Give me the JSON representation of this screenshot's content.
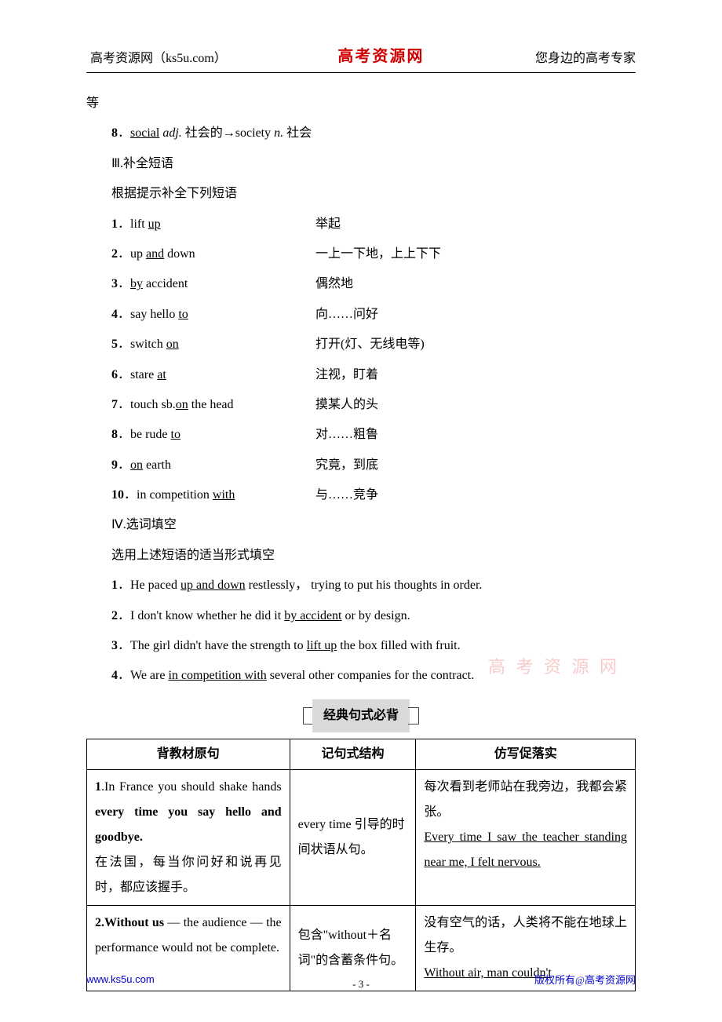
{
  "header": {
    "left": "高考资源网（ks5u.com）",
    "center": "高考资源网",
    "right": "您身边的高考专家"
  },
  "top_line": "等",
  "item8": {
    "num": "8",
    "text_pre": "．",
    "word1": "social",
    "pos1": " adj.",
    "def1": " 社会的→society ",
    "pos2": "n.",
    "def2": " 社会"
  },
  "section3_title": "Ⅲ.补全短语",
  "section3_sub": "根据提示补全下列短语",
  "phrases": [
    {
      "num": "1",
      "pre": "．lift ",
      "u": "up",
      "post": "",
      "cn": "举起"
    },
    {
      "num": "2",
      "pre": "．up ",
      "u": "and",
      "post": " down",
      "cn": "一上一下地，上上下下"
    },
    {
      "num": "3",
      "pre": "．",
      "u": "by",
      "post": " accident",
      "cn": "偶然地"
    },
    {
      "num": "4",
      "pre": "．say hello ",
      "u": "to",
      "post": "",
      "cn": "向……问好"
    },
    {
      "num": "5",
      "pre": "．switch ",
      "u": "on",
      "post": "",
      "cn": "打开(灯、无线电等)"
    },
    {
      "num": "6",
      "pre": "．stare ",
      "u": "at",
      "post": "",
      "cn": "注视，盯着"
    },
    {
      "num": "7",
      "pre": "．touch sb.",
      "u": "on",
      "post": " the head",
      "cn": "摸某人的头"
    },
    {
      "num": "8",
      "pre": "．be rude ",
      "u": "to",
      "post": "",
      "cn": "对……粗鲁"
    },
    {
      "num": "9",
      "pre": "．",
      "u": "on",
      "post": " earth",
      "cn": "究竟，到底"
    },
    {
      "num": "10",
      "pre": "．in competition ",
      "u": "with",
      "post": "",
      "cn": "与……竞争"
    }
  ],
  "section4_title": "Ⅳ.选词填空",
  "section4_sub": "选用上述短语的适当形式填空",
  "fills": [
    {
      "num": "1",
      "pre": "．He paced ",
      "u": "up and down",
      "post": " restlessly， trying to put his thoughts in order."
    },
    {
      "num": "2",
      "pre": "．I don't know whether he did it ",
      "u": "by accident",
      "post": " or by design."
    },
    {
      "num": "3",
      "pre": "．The girl didn't have the strength to ",
      "u": "lift up",
      "post": " the box filled with fruit."
    },
    {
      "num": "4",
      "pre": "．We are ",
      "u": "in competition with",
      "post": " several other companies for the contract."
    }
  ],
  "banner": "经典句式必背",
  "watermark": "高 考 资 源 网",
  "table": {
    "headers": [
      "背教材原句",
      "记句式结构",
      "仿写促落实"
    ],
    "rows": [
      {
        "c1_num": "1",
        "c1_plain1": ".In France you should shake hands ",
        "c1_bold": "every time you say hello and goodbye.",
        "c1_plain2": "",
        "c1_cn": "在法国，每当你问好和说再见时，都应该握手。",
        "c2": "every time 引导的时间状语从句。",
        "c3_cn": "每次看到老师站在我旁边，我都会紧张。",
        "c3_u": "Every time I saw the teacher standing near me, I felt nervous."
      },
      {
        "c1_num": "2",
        "c1_bold": ".Without us",
        "c1_plain1": " — the audience — the performance would not be complete.",
        "c1_cn": "",
        "c2": "包含\"without＋名词\"的含蓄条件句。",
        "c3_cn": "没有空气的话，人类将不能在地球上生存。",
        "c3_u": "Without air, man couldn't"
      }
    ]
  },
  "footer": {
    "left": "www.ks5u.com",
    "center": "- 3 -",
    "right": "版权所有@高考资源网"
  }
}
